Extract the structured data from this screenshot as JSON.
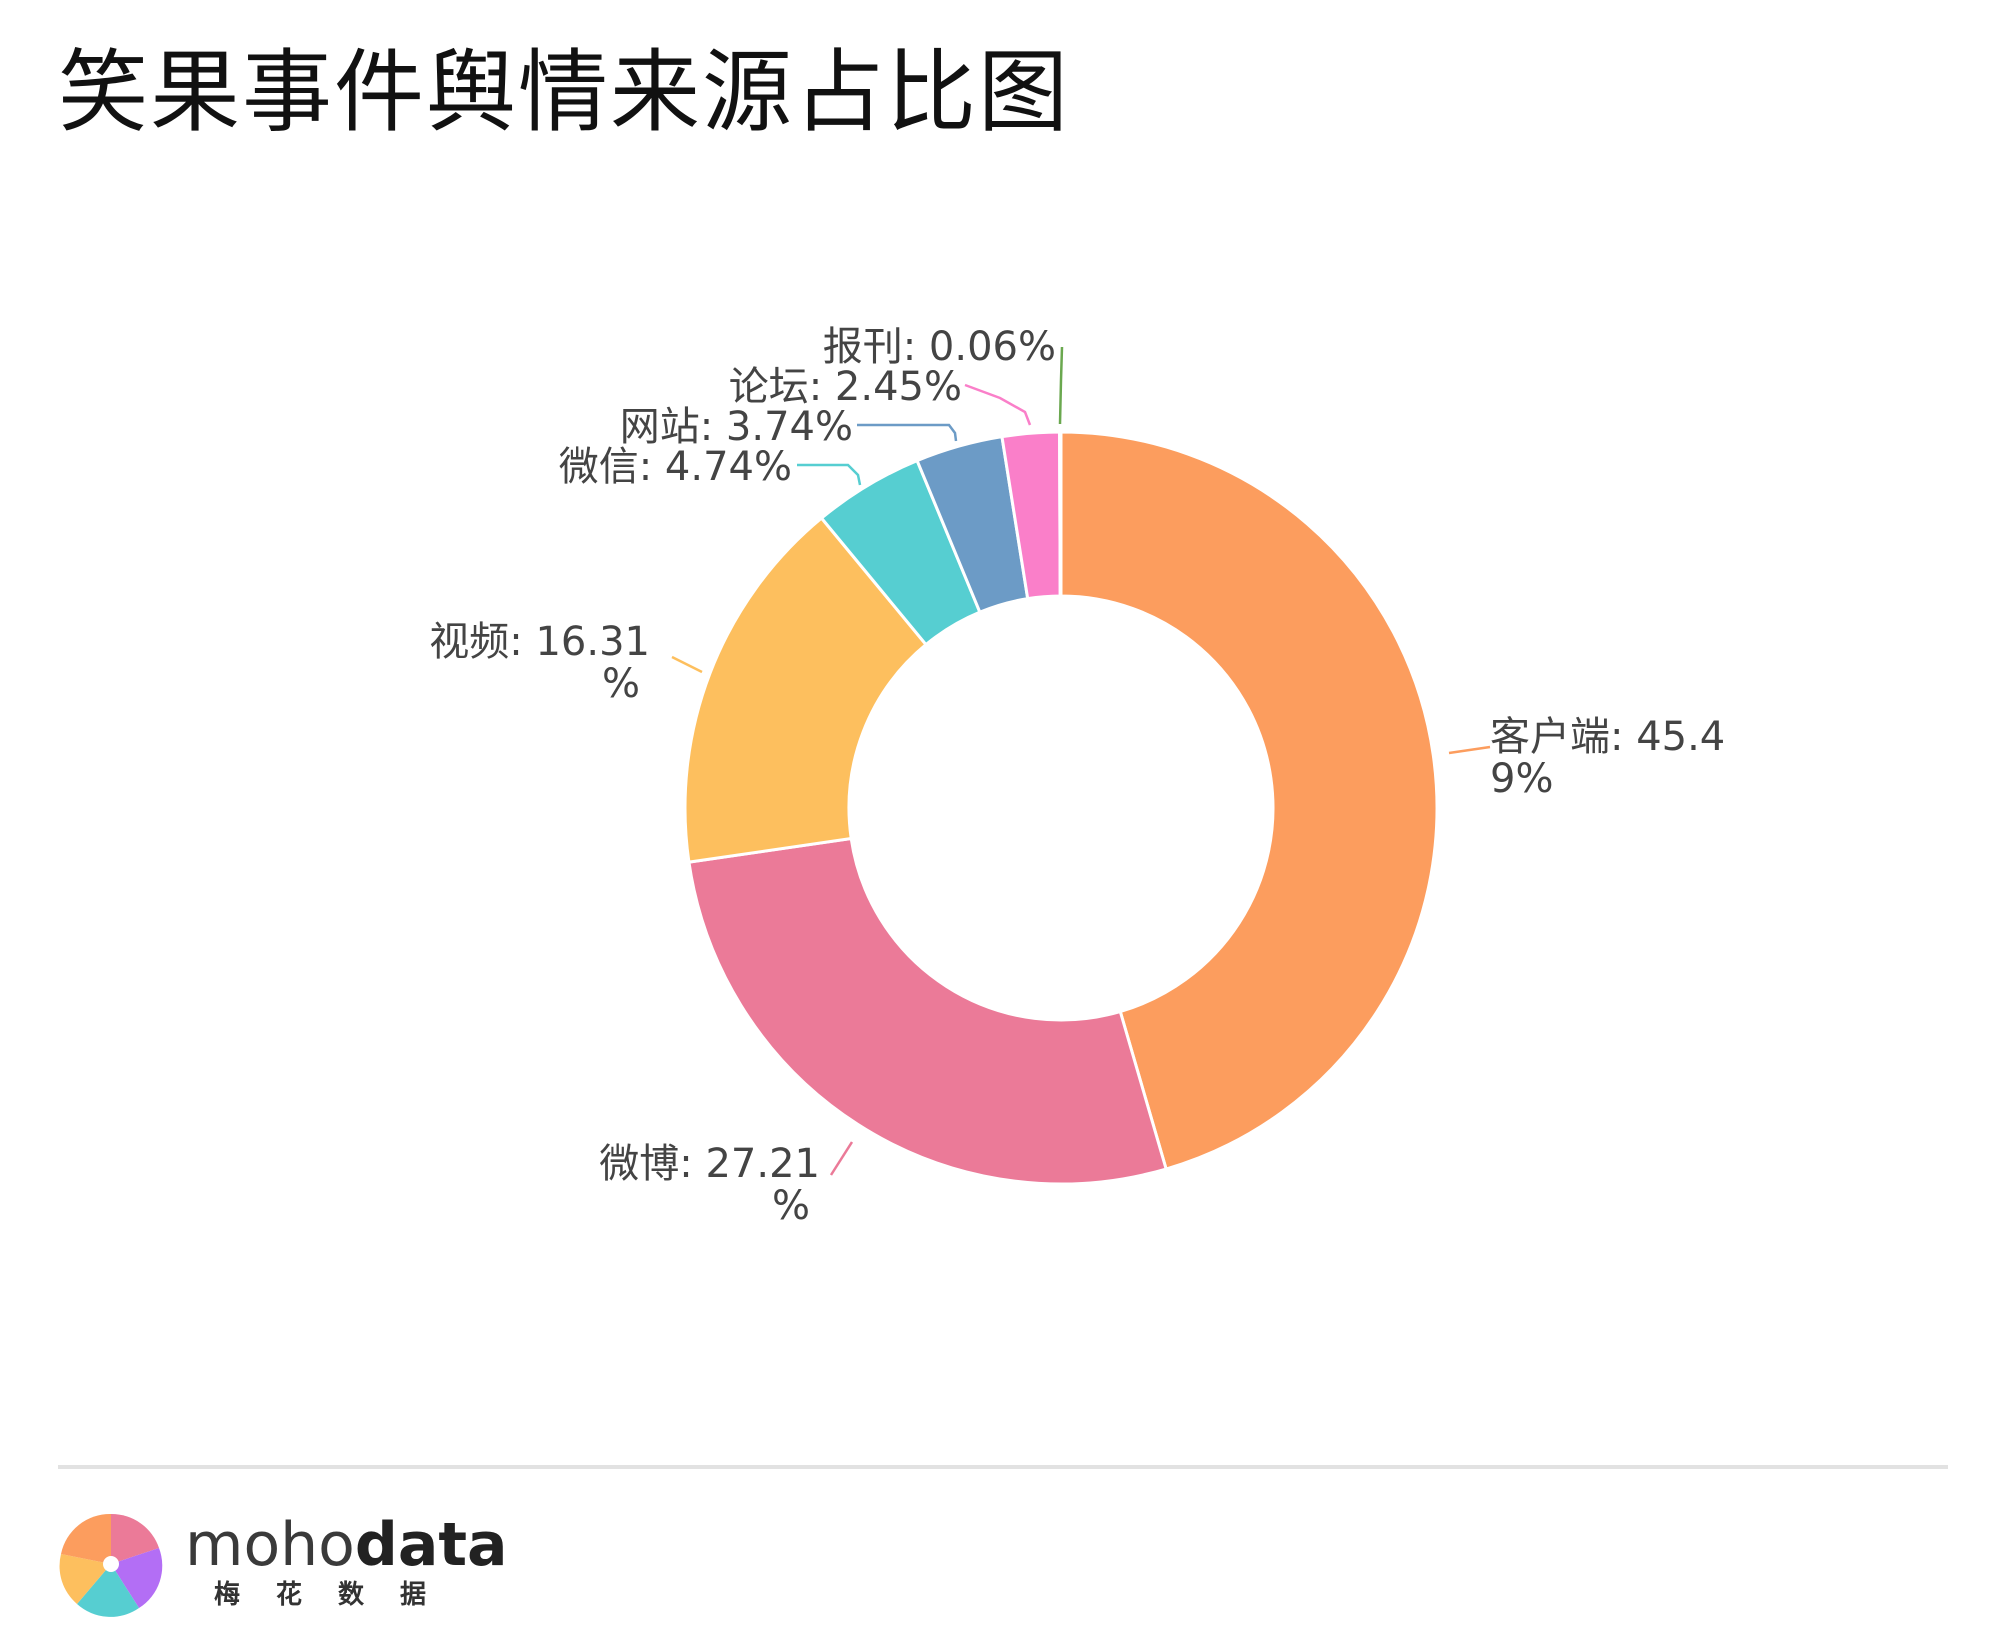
{
  "header": {
    "title": "笑果事件舆情来源占比图"
  },
  "chart_data": {
    "type": "pie",
    "variant": "donut",
    "title": "笑果事件舆情来源占比图",
    "slices": [
      {
        "label": "客户端",
        "value": 45.49,
        "text": "客户端: 45.4",
        "text2": "9%",
        "color": "#fc9d5e"
      },
      {
        "label": "微博",
        "value": 27.21,
        "text": "微博: 27.21",
        "text2": "%",
        "color": "#eb7a98"
      },
      {
        "label": "视频",
        "value": 16.31,
        "text": "视频: 16.31",
        "text2": "%",
        "color": "#fdbf5e"
      },
      {
        "label": "微信",
        "value": 4.74,
        "text": "微信: 4.74%",
        "text2": "",
        "color": "#56ced1"
      },
      {
        "label": "网站",
        "value": 3.74,
        "text": "网站: 3.74%",
        "text2": "",
        "color": "#6c9bc6"
      },
      {
        "label": "论坛",
        "value": 2.45,
        "text": "论坛: 2.45%",
        "text2": "",
        "color": "#fa7fc9"
      },
      {
        "label": "报刊",
        "value": 0.06,
        "text": "报刊: 0.06%",
        "text2": "",
        "color": "#6aa84f"
      }
    ],
    "start": "top",
    "direction": "clockwise",
    "legend": "none",
    "labels": "outside-with-leader-lines"
  },
  "footer": {
    "brand_thin": "moho",
    "brand_bold": "data",
    "brand_sub": "梅花数据"
  },
  "colors": {
    "label_text": "#444444",
    "divider": "#e2e2e2",
    "logo_petals": [
      "#fc9d5e",
      "#eb7a98",
      "#56ced1",
      "#b36ef5",
      "#fdbf5e"
    ]
  }
}
